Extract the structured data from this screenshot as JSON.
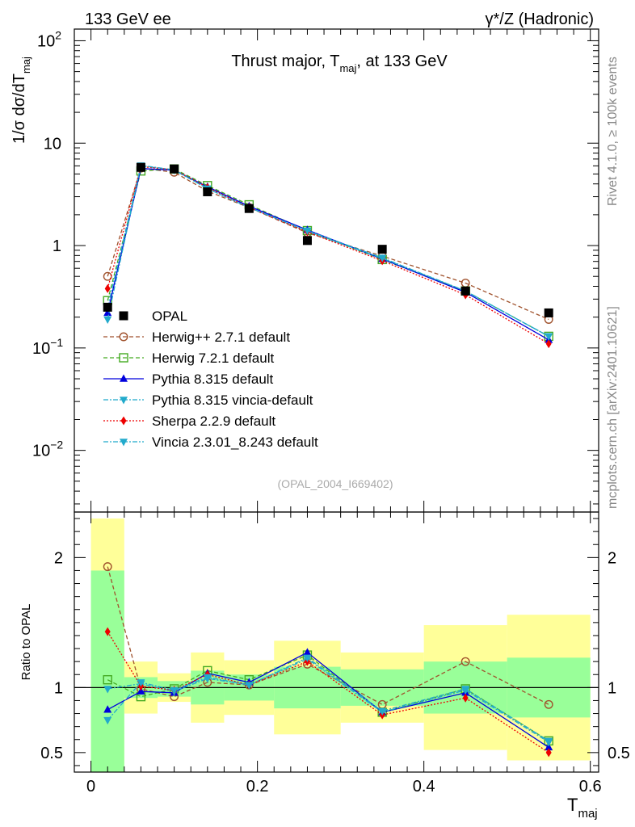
{
  "header": {
    "left_label": "133 GeV ee",
    "right_label": "γ*/Z (Hadronic)"
  },
  "side_labels": {
    "rivet": "Rivet 4.1.0, ≥ 100k events",
    "mcplots": "mcplots.cern.ch [arXiv:2401.10621]"
  },
  "chart_data": [
    {
      "type": "line",
      "panel": "main",
      "title": "Thrust major, T",
      "title_sub": "maj",
      "title_tail": ", at 133 GeV",
      "ylabel_prefix": "1/σ  dσ/dT",
      "ylabel_sub": "maj",
      "yscale": "log",
      "ylim": [
        0.0025,
        130
      ],
      "xlim": [
        -0.02,
        0.61
      ],
      "watermark": "(OPAL_2004_I669402)",
      "y_ticks": [
        {
          "value": 0.01,
          "base": "10",
          "exp": "−2"
        },
        {
          "value": 0.1,
          "base": "10",
          "exp": "−1"
        },
        {
          "value": 1,
          "base": "1",
          "exp": ""
        },
        {
          "value": 10,
          "base": "10",
          "exp": ""
        },
        {
          "value": 100,
          "base": "10",
          "exp": "2"
        }
      ],
      "data": {
        "name": "OPAL",
        "color": "#000000",
        "x": [
          0.02,
          0.06,
          0.1,
          0.14,
          0.19,
          0.26,
          0.35,
          0.45,
          0.55
        ],
        "y": [
          0.25,
          5.8,
          5.6,
          3.35,
          2.3,
          1.12,
          0.92,
          0.36,
          0.22
        ],
        "bands_inner": [
          {
            "x0": 0.0,
            "x1": 0.04,
            "lo": 0.0,
            "hi": 1.9
          },
          {
            "x0": 0.04,
            "x1": 0.08,
            "lo": 0.92,
            "hi": 1.08
          },
          {
            "x0": 0.08,
            "x1": 0.12,
            "lo": 0.93,
            "hi": 1.05
          },
          {
            "x0": 0.12,
            "x1": 0.16,
            "lo": 0.87,
            "hi": 1.13
          },
          {
            "x0": 0.16,
            "x1": 0.22,
            "lo": 0.9,
            "hi": 1.1
          },
          {
            "x0": 0.22,
            "x1": 0.3,
            "lo": 0.84,
            "hi": 1.16
          },
          {
            "x0": 0.3,
            "x1": 0.4,
            "lo": 0.86,
            "hi": 1.14
          },
          {
            "x0": 0.4,
            "x1": 0.5,
            "lo": 0.8,
            "hi": 1.2
          },
          {
            "x0": 0.5,
            "x1": 0.6,
            "lo": 0.77,
            "hi": 1.23
          }
        ],
        "bands_outer": [
          {
            "x0": 0.0,
            "x1": 0.04,
            "lo": 0.0,
            "hi": 2.3
          },
          {
            "x0": 0.04,
            "x1": 0.08,
            "lo": 0.8,
            "hi": 1.2
          },
          {
            "x0": 0.08,
            "x1": 0.12,
            "lo": 0.89,
            "hi": 1.11
          },
          {
            "x0": 0.12,
            "x1": 0.16,
            "lo": 0.73,
            "hi": 1.27
          },
          {
            "x0": 0.16,
            "x1": 0.22,
            "lo": 0.79,
            "hi": 1.21
          },
          {
            "x0": 0.22,
            "x1": 0.3,
            "lo": 0.64,
            "hi": 1.36
          },
          {
            "x0": 0.3,
            "x1": 0.4,
            "lo": 0.73,
            "hi": 1.27
          },
          {
            "x0": 0.4,
            "x1": 0.5,
            "lo": 0.52,
            "hi": 1.48
          },
          {
            "x0": 0.5,
            "x1": 0.6,
            "lo": 0.44,
            "hi": 1.56
          }
        ]
      },
      "series": [
        {
          "name": "Herwig++ 2.7.1 default",
          "color": "#a0522d",
          "dash": "5,3",
          "marker": "circle-open",
          "x": [
            0.02,
            0.06,
            0.1,
            0.14,
            0.19,
            0.26,
            0.35,
            0.45,
            0.55
          ],
          "y": [
            0.5,
            5.7,
            5.2,
            3.4,
            2.35,
            1.33,
            0.79,
            0.43,
            0.19
          ]
        },
        {
          "name": "Herwig 7.2.1 default",
          "color": "#44aa22",
          "dash": "5,3",
          "marker": "square-open",
          "x": [
            0.02,
            0.06,
            0.1,
            0.14,
            0.19,
            0.26,
            0.35,
            0.45,
            0.55
          ],
          "y": [
            0.29,
            5.35,
            5.6,
            3.85,
            2.5,
            1.4,
            0.73,
            0.36,
            0.13
          ]
        },
        {
          "name": "Pythia 8.315 default",
          "color": "#0000dd",
          "dash": "",
          "marker": "triangle-up",
          "x": [
            0.02,
            0.06,
            0.1,
            0.14,
            0.19,
            0.26,
            0.35,
            0.45,
            0.55
          ],
          "y": [
            0.22,
            5.65,
            5.45,
            3.75,
            2.42,
            1.42,
            0.74,
            0.35,
            0.12
          ]
        },
        {
          "name": "Pythia 8.315 vincia-default",
          "color": "#22aacc",
          "dash": "6,2,2,2",
          "marker": "triangle-down",
          "x": [
            0.02,
            0.06,
            0.1,
            0.14,
            0.19,
            0.26,
            0.35,
            0.45,
            0.55
          ],
          "y": [
            0.25,
            6.0,
            5.45,
            3.6,
            2.35,
            1.37,
            0.75,
            0.36,
            0.13
          ]
        },
        {
          "name": "Sherpa 2.2.9 default",
          "color": "#ee0000",
          "dash": "2,2",
          "marker": "diamond",
          "x": [
            0.02,
            0.06,
            0.1,
            0.14,
            0.19,
            0.26,
            0.35,
            0.45,
            0.55
          ],
          "y": [
            0.38,
            5.9,
            5.5,
            3.7,
            2.35,
            1.36,
            0.71,
            0.33,
            0.11
          ]
        },
        {
          "name": "Vincia 2.3.01_8.243 default",
          "color": "#22aacc",
          "dash": "6,2,2,2",
          "marker": "triangle-down",
          "x": [
            0.02,
            0.06,
            0.1,
            0.14,
            0.19,
            0.26,
            0.35,
            0.45,
            0.55
          ],
          "y": [
            0.19,
            6.05,
            5.5,
            3.6,
            2.35,
            1.4,
            0.76,
            0.36,
            0.13
          ]
        }
      ]
    },
    {
      "type": "line",
      "panel": "ratio",
      "ylabel": "Ratio to OPAL",
      "xlabel_prefix": "T",
      "xlabel_sub": "maj",
      "ylim": [
        0.35,
        2.35
      ],
      "xlim": [
        -0.02,
        0.61
      ],
      "x_ticks": [
        {
          "value": 0.0,
          "label": "0"
        },
        {
          "value": 0.2,
          "label": "0.2"
        },
        {
          "value": 0.4,
          "label": "0.4"
        },
        {
          "value": 0.6,
          "label": "0.6"
        }
      ],
      "y_ticks": [
        {
          "value": 0.5,
          "label": "0.5"
        },
        {
          "value": 1,
          "label": "1"
        },
        {
          "value": 2,
          "label": "2"
        }
      ],
      "series": [
        {
          "name": "Herwig++ 2.7.1 default",
          "color": "#a0522d",
          "dash": "5,3",
          "marker": "circle-open",
          "x": [
            0.02,
            0.06,
            0.1,
            0.14,
            0.19,
            0.26,
            0.35,
            0.45,
            0.55
          ],
          "y": [
            1.93,
            0.99,
            0.93,
            1.04,
            1.02,
            1.18,
            0.87,
            1.2,
            0.87
          ]
        },
        {
          "name": "Herwig 7.2.1 default",
          "color": "#44aa22",
          "dash": "5,3",
          "marker": "square-open",
          "x": [
            0.02,
            0.06,
            0.1,
            0.14,
            0.19,
            0.26,
            0.35,
            0.45,
            0.55
          ],
          "y": [
            1.06,
            0.93,
            0.99,
            1.13,
            1.06,
            1.25,
            0.81,
            0.99,
            0.59
          ]
        },
        {
          "name": "Pythia 8.315 default",
          "color": "#0000dd",
          "dash": "",
          "marker": "triangle-up",
          "x": [
            0.02,
            0.06,
            0.1,
            0.14,
            0.19,
            0.26,
            0.35,
            0.45,
            0.55
          ],
          "y": [
            0.83,
            0.97,
            0.96,
            1.11,
            1.04,
            1.27,
            0.81,
            0.96,
            0.54
          ]
        },
        {
          "name": "Pythia 8.315 vincia-default",
          "color": "#22aacc",
          "dash": "6,2,2,2",
          "marker": "triangle-down",
          "x": [
            0.02,
            0.06,
            0.1,
            0.14,
            0.19,
            0.26,
            0.35,
            0.45,
            0.55
          ],
          "y": [
            0.99,
            1.03,
            0.97,
            1.07,
            1.02,
            1.22,
            0.81,
            0.98,
            0.58
          ]
        },
        {
          "name": "Sherpa 2.2.9 default",
          "color": "#ee0000",
          "dash": "2,2",
          "marker": "diamond",
          "x": [
            0.02,
            0.06,
            0.1,
            0.14,
            0.19,
            0.26,
            0.35,
            0.45,
            0.55
          ],
          "y": [
            1.43,
            1.01,
            0.98,
            1.1,
            1.02,
            1.2,
            0.79,
            0.92,
            0.5
          ]
        },
        {
          "name": "Vincia 2.3.01_8.243 default",
          "color": "#22aacc",
          "dash": "6,2,2,2",
          "marker": "triangle-down",
          "x": [
            0.02,
            0.06,
            0.1,
            0.14,
            0.19,
            0.26,
            0.35,
            0.45,
            0.55
          ],
          "y": [
            0.75,
            1.04,
            0.98,
            1.08,
            1.02,
            1.23,
            0.82,
            0.99,
            0.59
          ]
        }
      ]
    }
  ]
}
